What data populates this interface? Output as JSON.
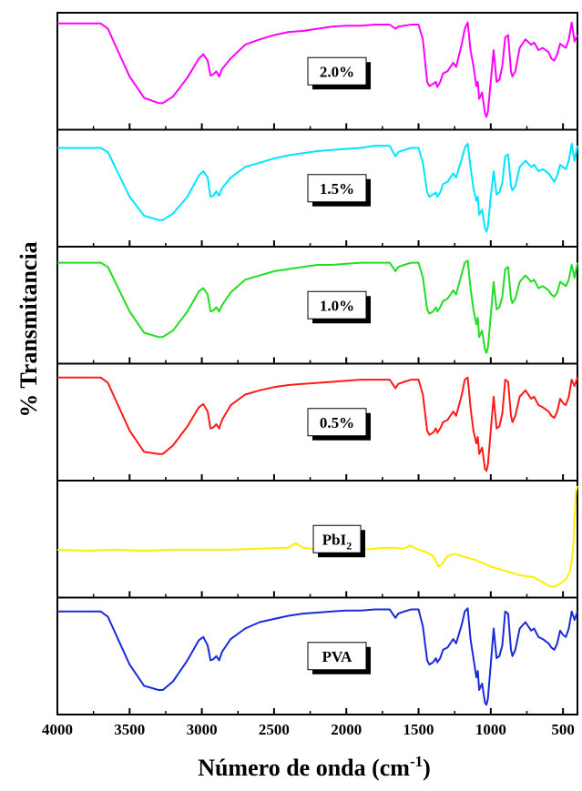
{
  "chart_data": {
    "type": "line",
    "title": "",
    "xlabel": "Número de onda (cm",
    "xlabel_sup": "-1",
    "xlabel_close": ")",
    "ylabel": "% Transmitancia",
    "xlim": [
      4000,
      400
    ],
    "x_reversed": true,
    "xticks": [
      4000,
      3500,
      3000,
      2500,
      2000,
      1500,
      1000,
      500
    ],
    "xtick_labels": [
      "4000",
      "3500",
      "3000",
      "2500",
      "2000",
      "1500",
      "1000",
      "500"
    ],
    "ylim": [
      0,
      1
    ],
    "y_units": "relative transmittance (no y tick labels shown)",
    "panels": [
      {
        "name": "2.0%",
        "label": "2.0%",
        "color": "#ff00ff",
        "x": [
          4000,
          3700,
          3650,
          3600,
          3500,
          3400,
          3300,
          3270,
          3200,
          3100,
          3020,
          2990,
          2960,
          2940,
          2920,
          2900,
          2880,
          2860,
          2800,
          2700,
          2600,
          2500,
          2400,
          2300,
          2200,
          2100,
          2000,
          1900,
          1800,
          1700,
          1660,
          1640,
          1600,
          1550,
          1500,
          1470,
          1440,
          1425,
          1400,
          1380,
          1370,
          1350,
          1330,
          1300,
          1260,
          1240,
          1200,
          1180,
          1160,
          1140,
          1120,
          1100,
          1090,
          1080,
          1060,
          1040,
          1030,
          1020,
          1000,
          980,
          960,
          940,
          920,
          900,
          880,
          860,
          850,
          830,
          800,
          760,
          720,
          700,
          670,
          640,
          600,
          580,
          560,
          540,
          520,
          500,
          480,
          460,
          440,
          420,
          400
        ],
        "y": [
          0.95,
          0.95,
          0.9,
          0.75,
          0.45,
          0.25,
          0.2,
          0.2,
          0.26,
          0.44,
          0.62,
          0.66,
          0.6,
          0.46,
          0.47,
          0.5,
          0.45,
          0.52,
          0.62,
          0.75,
          0.8,
          0.84,
          0.87,
          0.88,
          0.9,
          0.92,
          0.93,
          0.93,
          0.94,
          0.94,
          0.9,
          0.92,
          0.93,
          0.94,
          0.94,
          0.8,
          0.4,
          0.36,
          0.38,
          0.4,
          0.35,
          0.4,
          0.48,
          0.5,
          0.58,
          0.54,
          0.76,
          0.9,
          0.96,
          0.7,
          0.55,
          0.36,
          0.4,
          0.24,
          0.3,
          0.1,
          0.07,
          0.12,
          0.4,
          0.7,
          0.4,
          0.42,
          0.55,
          0.82,
          0.84,
          0.5,
          0.45,
          0.5,
          0.72,
          0.8,
          0.75,
          0.77,
          0.7,
          0.72,
          0.68,
          0.62,
          0.6,
          0.66,
          0.76,
          0.74,
          0.72,
          0.8,
          0.96,
          0.78,
          0.84
        ]
      },
      {
        "name": "1.5%",
        "label": "1.5%",
        "color": "#00e5ff",
        "x": [
          4000,
          3700,
          3650,
          3600,
          3500,
          3400,
          3300,
          3270,
          3200,
          3100,
          3020,
          2990,
          2960,
          2940,
          2920,
          2900,
          2880,
          2860,
          2800,
          2700,
          2600,
          2500,
          2400,
          2300,
          2200,
          2100,
          2000,
          1900,
          1800,
          1700,
          1660,
          1640,
          1600,
          1550,
          1500,
          1470,
          1440,
          1425,
          1400,
          1380,
          1370,
          1350,
          1330,
          1300,
          1260,
          1240,
          1200,
          1180,
          1160,
          1140,
          1120,
          1100,
          1090,
          1080,
          1060,
          1040,
          1030,
          1020,
          1000,
          980,
          960,
          940,
          920,
          900,
          880,
          860,
          850,
          830,
          800,
          760,
          720,
          700,
          670,
          640,
          600,
          580,
          560,
          540,
          520,
          500,
          480,
          460,
          440,
          420,
          400
        ],
        "y": [
          0.88,
          0.88,
          0.84,
          0.7,
          0.42,
          0.24,
          0.2,
          0.2,
          0.26,
          0.42,
          0.62,
          0.66,
          0.6,
          0.42,
          0.43,
          0.47,
          0.43,
          0.5,
          0.6,
          0.7,
          0.74,
          0.78,
          0.81,
          0.83,
          0.85,
          0.86,
          0.87,
          0.88,
          0.9,
          0.9,
          0.8,
          0.84,
          0.86,
          0.88,
          0.88,
          0.74,
          0.46,
          0.42,
          0.44,
          0.46,
          0.42,
          0.46,
          0.54,
          0.56,
          0.64,
          0.6,
          0.78,
          0.88,
          0.92,
          0.7,
          0.5,
          0.38,
          0.42,
          0.25,
          0.3,
          0.12,
          0.09,
          0.14,
          0.42,
          0.66,
          0.44,
          0.46,
          0.55,
          0.8,
          0.82,
          0.52,
          0.48,
          0.52,
          0.7,
          0.76,
          0.7,
          0.72,
          0.66,
          0.68,
          0.64,
          0.6,
          0.56,
          0.62,
          0.72,
          0.7,
          0.68,
          0.76,
          0.92,
          0.76,
          0.9
        ]
      },
      {
        "name": "1.0%",
        "label": "1.0%",
        "color": "#22dd22",
        "x": [
          4000,
          3700,
          3650,
          3600,
          3500,
          3400,
          3300,
          3270,
          3200,
          3100,
          3020,
          2990,
          2960,
          2940,
          2920,
          2900,
          2880,
          2860,
          2800,
          2700,
          2600,
          2500,
          2400,
          2300,
          2200,
          2100,
          2000,
          1900,
          1800,
          1700,
          1660,
          1640,
          1600,
          1550,
          1500,
          1470,
          1440,
          1425,
          1400,
          1380,
          1370,
          1350,
          1330,
          1300,
          1260,
          1240,
          1200,
          1180,
          1160,
          1140,
          1120,
          1100,
          1090,
          1080,
          1060,
          1040,
          1030,
          1020,
          1000,
          980,
          960,
          940,
          920,
          900,
          880,
          860,
          850,
          830,
          800,
          760,
          720,
          700,
          670,
          640,
          600,
          580,
          560,
          540,
          520,
          500,
          480,
          460,
          440,
          420,
          400
        ],
        "y": [
          0.9,
          0.9,
          0.86,
          0.72,
          0.44,
          0.24,
          0.2,
          0.2,
          0.26,
          0.44,
          0.63,
          0.66,
          0.6,
          0.44,
          0.45,
          0.48,
          0.44,
          0.5,
          0.62,
          0.74,
          0.78,
          0.82,
          0.84,
          0.86,
          0.88,
          0.88,
          0.89,
          0.9,
          0.9,
          0.9,
          0.82,
          0.86,
          0.88,
          0.9,
          0.9,
          0.76,
          0.46,
          0.42,
          0.44,
          0.48,
          0.44,
          0.48,
          0.54,
          0.56,
          0.64,
          0.6,
          0.8,
          0.9,
          0.92,
          0.66,
          0.46,
          0.32,
          0.38,
          0.2,
          0.26,
          0.08,
          0.05,
          0.1,
          0.4,
          0.72,
          0.46,
          0.48,
          0.58,
          0.84,
          0.86,
          0.56,
          0.52,
          0.56,
          0.72,
          0.78,
          0.72,
          0.74,
          0.66,
          0.68,
          0.64,
          0.6,
          0.58,
          0.62,
          0.72,
          0.7,
          0.68,
          0.74,
          0.88,
          0.76,
          0.9
        ]
      },
      {
        "name": "0.5%",
        "label": "0.5%",
        "color": "#ff1a1a",
        "x": [
          4000,
          3700,
          3650,
          3600,
          3500,
          3400,
          3300,
          3270,
          3200,
          3100,
          3020,
          2990,
          2960,
          2940,
          2920,
          2900,
          2880,
          2860,
          2800,
          2700,
          2600,
          2500,
          2400,
          2300,
          2200,
          2100,
          2000,
          1900,
          1800,
          1700,
          1660,
          1640,
          1600,
          1550,
          1500,
          1470,
          1440,
          1425,
          1400,
          1380,
          1370,
          1350,
          1330,
          1300,
          1260,
          1240,
          1200,
          1180,
          1160,
          1140,
          1120,
          1100,
          1090,
          1080,
          1060,
          1040,
          1030,
          1020,
          1000,
          980,
          960,
          940,
          920,
          900,
          880,
          860,
          850,
          830,
          800,
          760,
          720,
          700,
          670,
          640,
          600,
          580,
          560,
          540,
          520,
          500,
          480,
          460,
          440,
          420,
          400
        ],
        "y": [
          0.92,
          0.92,
          0.87,
          0.72,
          0.42,
          0.22,
          0.2,
          0.2,
          0.28,
          0.46,
          0.64,
          0.67,
          0.6,
          0.44,
          0.45,
          0.48,
          0.44,
          0.52,
          0.66,
          0.76,
          0.8,
          0.83,
          0.85,
          0.86,
          0.87,
          0.88,
          0.89,
          0.9,
          0.9,
          0.9,
          0.82,
          0.86,
          0.88,
          0.9,
          0.9,
          0.76,
          0.42,
          0.38,
          0.4,
          0.44,
          0.4,
          0.44,
          0.5,
          0.52,
          0.6,
          0.56,
          0.76,
          0.9,
          0.92,
          0.64,
          0.42,
          0.3,
          0.36,
          0.2,
          0.26,
          0.06,
          0.04,
          0.1,
          0.42,
          0.74,
          0.44,
          0.46,
          0.58,
          0.9,
          0.88,
          0.56,
          0.5,
          0.56,
          0.74,
          0.8,
          0.72,
          0.74,
          0.66,
          0.64,
          0.6,
          0.56,
          0.54,
          0.6,
          0.72,
          0.68,
          0.66,
          0.74,
          0.9,
          0.84,
          0.92
        ]
      },
      {
        "name": "PbI2",
        "label": "PbI",
        "label_sub": "2",
        "color": "#ffee00",
        "x": [
          4000,
          3800,
          3600,
          3400,
          3200,
          3000,
          2800,
          2600,
          2400,
          2350,
          2300,
          2200,
          2100,
          2000,
          1900,
          1800,
          1700,
          1600,
          1560,
          1500,
          1450,
          1400,
          1360,
          1340,
          1300,
          1250,
          1200,
          1100,
          1000,
          900,
          800,
          700,
          650,
          600,
          560,
          520,
          480,
          450,
          430,
          420,
          410,
          400
        ],
        "y": [
          0.4,
          0.39,
          0.4,
          0.39,
          0.4,
          0.4,
          0.4,
          0.41,
          0.42,
          0.46,
          0.42,
          0.4,
          0.4,
          0.41,
          0.4,
          0.41,
          0.42,
          0.41,
          0.44,
          0.4,
          0.38,
          0.34,
          0.24,
          0.26,
          0.34,
          0.36,
          0.34,
          0.3,
          0.24,
          0.2,
          0.16,
          0.14,
          0.1,
          0.06,
          0.05,
          0.08,
          0.12,
          0.2,
          0.4,
          0.7,
          0.95,
          1.0
        ]
      },
      {
        "name": "PVA",
        "label": "PVA",
        "color": "#1a2bd6",
        "x": [
          4000,
          3700,
          3650,
          3600,
          3500,
          3400,
          3300,
          3270,
          3200,
          3100,
          3020,
          2990,
          2960,
          2940,
          2920,
          2900,
          2880,
          2860,
          2800,
          2700,
          2600,
          2500,
          2400,
          2300,
          2200,
          2100,
          2000,
          1900,
          1800,
          1700,
          1660,
          1640,
          1600,
          1550,
          1500,
          1470,
          1440,
          1425,
          1400,
          1380,
          1370,
          1350,
          1330,
          1300,
          1260,
          1240,
          1200,
          1180,
          1160,
          1140,
          1120,
          1100,
          1090,
          1080,
          1060,
          1040,
          1030,
          1020,
          1000,
          980,
          960,
          940,
          920,
          900,
          880,
          860,
          850,
          830,
          800,
          760,
          720,
          700,
          670,
          640,
          600,
          580,
          560,
          540,
          520,
          500,
          480,
          460,
          440,
          420,
          400
        ],
        "y": [
          0.92,
          0.92,
          0.87,
          0.72,
          0.42,
          0.22,
          0.18,
          0.18,
          0.26,
          0.46,
          0.65,
          0.68,
          0.6,
          0.46,
          0.47,
          0.5,
          0.46,
          0.54,
          0.66,
          0.76,
          0.82,
          0.85,
          0.88,
          0.9,
          0.91,
          0.92,
          0.93,
          0.93,
          0.94,
          0.94,
          0.86,
          0.9,
          0.92,
          0.94,
          0.94,
          0.78,
          0.46,
          0.42,
          0.44,
          0.48,
          0.44,
          0.48,
          0.56,
          0.58,
          0.66,
          0.62,
          0.8,
          0.92,
          0.95,
          0.66,
          0.48,
          0.3,
          0.36,
          0.18,
          0.24,
          0.06,
          0.04,
          0.1,
          0.42,
          0.76,
          0.48,
          0.5,
          0.6,
          0.92,
          0.9,
          0.56,
          0.5,
          0.56,
          0.76,
          0.82,
          0.74,
          0.76,
          0.68,
          0.66,
          0.62,
          0.58,
          0.56,
          0.62,
          0.74,
          0.7,
          0.68,
          0.76,
          0.92,
          0.84,
          0.92
        ]
      }
    ]
  }
}
